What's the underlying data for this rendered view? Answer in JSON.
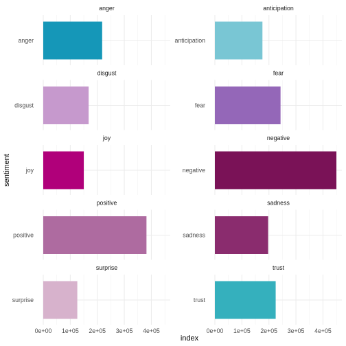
{
  "chart_data": {
    "type": "bar",
    "orientation": "horizontal",
    "facet_layout": "2 columns x 5 rows",
    "xlabel": "index",
    "ylabel": "sentiment",
    "xlim": [
      0,
      470000
    ],
    "x_ticks": [
      0,
      100000,
      200000,
      300000,
      400000
    ],
    "x_tick_labels": [
      "0e+00",
      "1e+05",
      "2e+05",
      "3e+05",
      "4e+05"
    ],
    "grid": true,
    "legend": "none",
    "panels": [
      {
        "strip": "anger",
        "category": "anger",
        "value": 218000,
        "color": "#1597B8"
      },
      {
        "strip": "anticipation",
        "category": "anticipation",
        "value": 176000,
        "color": "#79C6D4"
      },
      {
        "strip": "disgust",
        "category": "disgust",
        "value": 168000,
        "color": "#C699CD"
      },
      {
        "strip": "fear",
        "category": "fear",
        "value": 243000,
        "color": "#9467B8"
      },
      {
        "strip": "joy",
        "category": "joy",
        "value": 150000,
        "color": "#B0007A"
      },
      {
        "strip": "negative",
        "category": "negative",
        "value": 475000,
        "color": "#7A1257"
      },
      {
        "strip": "positive",
        "category": "positive",
        "value": 382000,
        "color": "#AE6BA0"
      },
      {
        "strip": "sadness",
        "category": "sadness",
        "value": 197000,
        "color": "#8A2C6E"
      },
      {
        "strip": "surprise",
        "category": "surprise",
        "value": 126000,
        "color": "#D7B2CC"
      },
      {
        "strip": "trust",
        "category": "trust",
        "value": 225000,
        "color": "#35B0BD"
      }
    ]
  }
}
